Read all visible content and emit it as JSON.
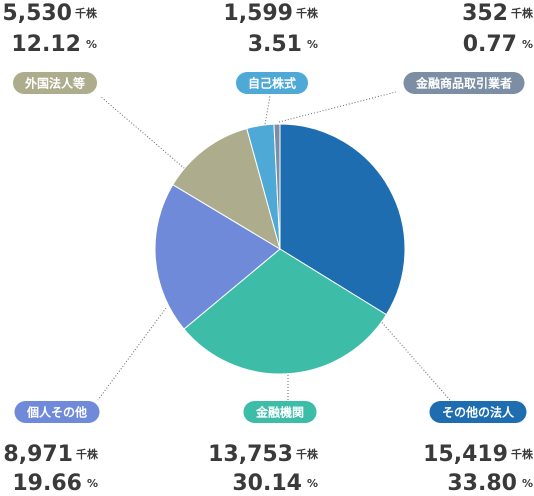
{
  "chart_data": {
    "type": "pie",
    "categories": [
      "その他の法人",
      "金融機関",
      "個人その他",
      "外国法人等",
      "自己株式",
      "金融商品取引業者"
    ],
    "values": [
      33.8,
      30.14,
      19.66,
      12.12,
      3.51,
      0.77
    ],
    "value_labels": [
      "33.80",
      "30.14",
      "19.66",
      "12.12",
      "3.51",
      "0.77"
    ],
    "shares": [
      15419,
      13753,
      8971,
      5530,
      1599,
      352
    ],
    "share_labels": [
      "15,419",
      "13,753",
      "8,971",
      "5,530",
      "1,599",
      "352"
    ],
    "share_unit": "千株",
    "percent_unit": "%",
    "colors": [
      "#1e6db0",
      "#3dbda8",
      "#6f8ad9",
      "#adad8d",
      "#4fa9d6",
      "#7c8ea3"
    ]
  }
}
